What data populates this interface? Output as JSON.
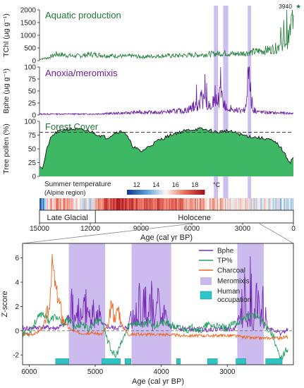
{
  "colors": {
    "aquatic": "#1f7a35",
    "anoxia": "#6a1fa3",
    "forest_fill": "#3fb866",
    "forest_line": "#111111",
    "meromixis": "#c8b8ec",
    "bphe": "#7a2bb8",
    "tp": "#22a060",
    "charcoal": "#f0641e",
    "human": "#2ec4c4",
    "axis": "#222222"
  },
  "chart_data": [
    {
      "type": "line",
      "panel": "aquatic-production",
      "title": "Aquatic production",
      "ylabel": "TChl (µg g⁻¹)",
      "ylim": [
        0,
        2000
      ],
      "yticks": [
        0,
        500,
        1000,
        1500,
        2000
      ],
      "xlim": [
        15000,
        0
      ],
      "x": [
        15000,
        14500,
        14000,
        13500,
        13000,
        12500,
        12000,
        11500,
        11000,
        10500,
        10000,
        9500,
        9000,
        8500,
        8000,
        7500,
        7000,
        6500,
        6000,
        5500,
        5000,
        4500,
        4000,
        3500,
        3000,
        2500,
        2000,
        1500,
        1000,
        600,
        300,
        150,
        50
      ],
      "values": [
        60,
        110,
        260,
        220,
        180,
        200,
        250,
        230,
        200,
        190,
        170,
        190,
        150,
        170,
        180,
        200,
        190,
        210,
        220,
        230,
        260,
        280,
        300,
        260,
        290,
        330,
        380,
        420,
        500,
        700,
        850,
        1300,
        1900
      ],
      "annotation": "3940"
    },
    {
      "type": "line",
      "panel": "anoxia-meromixis",
      "title": "Anoxia/meromixis",
      "ylabel": "Bphe (µg g⁻¹)",
      "ylim": [
        0,
        100
      ],
      "yticks": [
        0,
        25,
        50,
        75,
        100
      ],
      "xlim": [
        15000,
        0
      ],
      "x": [
        15000,
        12000,
        10000,
        9000,
        8000,
        7000,
        6500,
        6000,
        5600,
        5400,
        5200,
        5000,
        4800,
        4500,
        4300,
        4100,
        3900,
        3600,
        3300,
        3000,
        2800,
        2700,
        2600,
        2500,
        2400,
        2000,
        1500,
        1000,
        500,
        0
      ],
      "values": [
        2,
        2,
        4,
        6,
        5,
        8,
        8,
        15,
        25,
        35,
        30,
        18,
        10,
        30,
        40,
        25,
        12,
        8,
        10,
        8,
        15,
        55,
        75,
        40,
        12,
        6,
        5,
        4,
        4,
        3
      ]
    },
    {
      "type": "area",
      "panel": "forest-cover",
      "title": "Forest Cover",
      "ylabel": "Tree pollen (%)",
      "ylim": [
        0,
        100
      ],
      "yticks": [
        0,
        25,
        50,
        75,
        100
      ],
      "xlim": [
        15000,
        0
      ],
      "threshold": 80,
      "x": [
        15000,
        14800,
        14600,
        14400,
        14200,
        14000,
        13500,
        13000,
        12500,
        12000,
        11500,
        11000,
        10500,
        10000,
        9500,
        9000,
        8500,
        8000,
        7500,
        7000,
        6500,
        6000,
        5500,
        5000,
        4500,
        4000,
        3500,
        3000,
        2500,
        2000,
        1500,
        1000,
        800,
        600,
        400,
        200,
        0
      ],
      "values": [
        20,
        15,
        45,
        65,
        75,
        80,
        85,
        86,
        84,
        82,
        75,
        70,
        80,
        82,
        55,
        45,
        55,
        65,
        72,
        78,
        82,
        85,
        86,
        84,
        80,
        83,
        80,
        75,
        72,
        70,
        68,
        60,
        55,
        45,
        35,
        25,
        35
      ]
    },
    {
      "type": "heatmap",
      "panel": "summer-temperature",
      "title": "Summer temperature",
      "subtitle": "(Alpine region)",
      "colorbar_ticks": [
        12,
        14,
        16,
        18
      ],
      "colorbar_unit": "°C",
      "color_range": [
        11,
        19
      ],
      "x": [
        15000,
        14500,
        14000,
        13500,
        13000,
        12500,
        12000,
        11500,
        11000,
        10500,
        10000,
        9500,
        9000,
        8500,
        8000,
        7500,
        7000,
        6500,
        6000,
        5500,
        5000,
        4500,
        4000,
        3500,
        3000,
        2500,
        2000,
        1500,
        1000,
        500,
        0
      ],
      "values": [
        11.5,
        15.5,
        16.5,
        16.0,
        15.5,
        15.0,
        14.5,
        17.0,
        17.5,
        17.8,
        18.0,
        17.8,
        17.5,
        17.6,
        17.5,
        17.2,
        17.0,
        16.8,
        16.5,
        16.2,
        16.0,
        15.8,
        15.5,
        15.5,
        15.3,
        15.0,
        14.8,
        15.0,
        14.5,
        14.3,
        14.0
      ],
      "periods": [
        "Late Glacial",
        "Holocene"
      ],
      "period_boundary": 11700,
      "xlabel": "Age (cal yr BP)",
      "xticks": [
        15000,
        12000,
        9000,
        6000,
        3000,
        0
      ]
    },
    {
      "type": "line",
      "panel": "zscore-detail",
      "ylabel": "Z-score",
      "xlabel": "Age (cal yr BP)",
      "xlim": [
        6100,
        2000
      ],
      "ylim": [
        -2.8,
        7.2
      ],
      "xticks": [
        6000,
        5000,
        4000,
        3000
      ],
      "yticks": [
        -2,
        0,
        2,
        4,
        6
      ],
      "legend": [
        "Bphe",
        "TP%",
        "Charcoal",
        "Meromixis",
        "Human occupation"
      ],
      "meromixis_intervals": [
        [
          5400,
          4850
        ],
        [
          4450,
          3850
        ],
        [
          2850,
          2450
        ]
      ],
      "human_occupation_intervals": [
        [
          5600,
          5400
        ],
        [
          4900,
          4620
        ],
        [
          4550,
          4460
        ],
        [
          3770,
          3710
        ],
        [
          3300,
          3150
        ],
        [
          2870,
          2720
        ],
        [
          2420,
          2170
        ]
      ],
      "series": [
        {
          "name": "Bphe",
          "x": [
            6000,
            5800,
            5600,
            5450,
            5350,
            5300,
            5250,
            5200,
            5150,
            5100,
            5050,
            5000,
            4950,
            4900,
            4800,
            4700,
            4600,
            4500,
            4450,
            4400,
            4350,
            4300,
            4250,
            4200,
            4150,
            4100,
            4050,
            4000,
            3950,
            3900,
            3850,
            3700,
            3500,
            3300,
            3100,
            2900,
            2800,
            2750,
            2700,
            2650,
            2600,
            2550,
            2500,
            2450,
            2400,
            2300,
            2200,
            2100
          ],
          "values": [
            0.2,
            0.3,
            0.2,
            0.5,
            3.5,
            0.8,
            4.2,
            1.0,
            4.0,
            1.5,
            3.8,
            0.9,
            2.5,
            0.5,
            0.3,
            0.2,
            0.3,
            0.2,
            3.0,
            1.0,
            5.5,
            0.8,
            4.8,
            1.2,
            4.5,
            0.6,
            3.8,
            0.9,
            2.5,
            0.5,
            0.3,
            0.2,
            0.1,
            0.1,
            0.2,
            0.1,
            1.5,
            5.8,
            0.5,
            6.3,
            0.8,
            6.8,
            0.4,
            5.0,
            0.3,
            0.1,
            -0.2,
            0.0
          ]
        },
        {
          "name": "TP%",
          "x": [
            6000,
            5900,
            5800,
            5700,
            5600,
            5500,
            5400,
            5300,
            5200,
            5100,
            5000,
            4900,
            4800,
            4700,
            4600,
            4500,
            4400,
            4300,
            4200,
            4100,
            4000,
            3900,
            3800,
            3700,
            3600,
            3500,
            3400,
            3300,
            3200,
            3100,
            3000,
            2900,
            2800,
            2700,
            2600,
            2500,
            2400,
            2300,
            2200,
            2100
          ],
          "values": [
            -0.2,
            0.8,
            1.5,
            0.8,
            1.2,
            0.6,
            0.9,
            0.3,
            0.6,
            0.1,
            0.8,
            0.9,
            -1.0,
            -2.2,
            -1.0,
            0.4,
            0.7,
            0.5,
            0.7,
            0.4,
            0.7,
            0.6,
            0.3,
            0.2,
            0.1,
            0.3,
            0.0,
            0.5,
            0.4,
            0.3,
            0.2,
            0.6,
            0.8,
            1.2,
            1.3,
            1.0,
            0.3,
            -0.5,
            -2.4,
            -1.5
          ]
        },
        {
          "name": "Charcoal",
          "x": [
            6000,
            5900,
            5800,
            5700,
            5650,
            5600,
            5550,
            5500,
            5450,
            5400,
            5300,
            5200,
            5100,
            5000,
            4900,
            4800,
            4750,
            4700,
            4650,
            4600,
            4500,
            4300,
            4100,
            3900,
            3700,
            3500,
            3300,
            3100,
            2900,
            2800,
            2600,
            2400,
            2200,
            2100
          ],
          "values": [
            -0.3,
            -0.2,
            0.2,
            1.8,
            5.8,
            3.5,
            2.5,
            1.2,
            0.6,
            0.2,
            -0.1,
            -0.2,
            -0.2,
            -0.2,
            -0.3,
            0.5,
            2.3,
            0.8,
            2.0,
            0.5,
            -0.3,
            -0.3,
            -0.3,
            -0.3,
            -0.4,
            -0.4,
            -0.4,
            -0.4,
            -0.4,
            -0.5,
            -0.6,
            -0.6,
            -0.6,
            -0.5
          ]
        }
      ]
    }
  ]
}
